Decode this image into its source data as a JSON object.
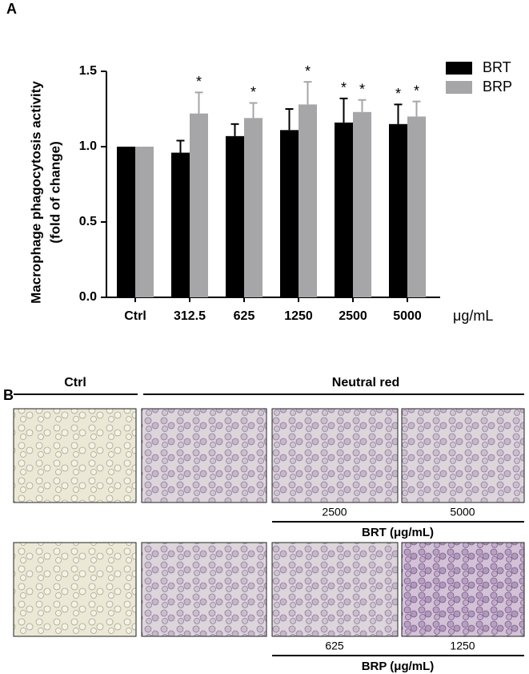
{
  "chart_data": {
    "type": "bar",
    "panel_label": "A",
    "y_label": [
      "Macrophage phagocytosis  activity",
      "(fold of change)"
    ],
    "x_label": "μg/mL",
    "categories": [
      "Ctrl",
      "312.5",
      "625",
      "1250",
      "2500",
      "5000"
    ],
    "series": [
      {
        "name": "BRT",
        "color": "#000000",
        "values": [
          1.0,
          0.96,
          1.07,
          1.11,
          1.16,
          1.15
        ],
        "errors": [
          null,
          0.08,
          0.08,
          0.14,
          0.16,
          0.13
        ],
        "significance": [
          null,
          null,
          null,
          null,
          "*",
          "*"
        ]
      },
      {
        "name": "BRP",
        "color": "#a6a6a8",
        "values": [
          1.0,
          1.22,
          1.19,
          1.28,
          1.23,
          1.2
        ],
        "errors": [
          null,
          0.14,
          0.1,
          0.15,
          0.08,
          0.1
        ],
        "significance": [
          null,
          "*",
          "*",
          "*",
          "*",
          "*"
        ]
      }
    ],
    "ylim": [
      0,
      1.5
    ],
    "yticks": [
      {
        "value": 0,
        "label": "0.0"
      },
      {
        "value": 0.5,
        "label": "0.5"
      },
      {
        "value": 1,
        "label": "1.0"
      },
      {
        "value": 1.5,
        "label": "1.5"
      }
    ],
    "legend": "top-right"
  },
  "panel_b": {
    "label": "B",
    "ctrl_header": "Ctrl",
    "treatment_header": "Neutral red",
    "rows": [
      {
        "concentrations": [
          "2500",
          "5000"
        ],
        "group": "BRT (μg/mL)"
      },
      {
        "concentrations": [
          "625",
          "1250"
        ],
        "group": "BRP (μg/mL)"
      }
    ]
  }
}
